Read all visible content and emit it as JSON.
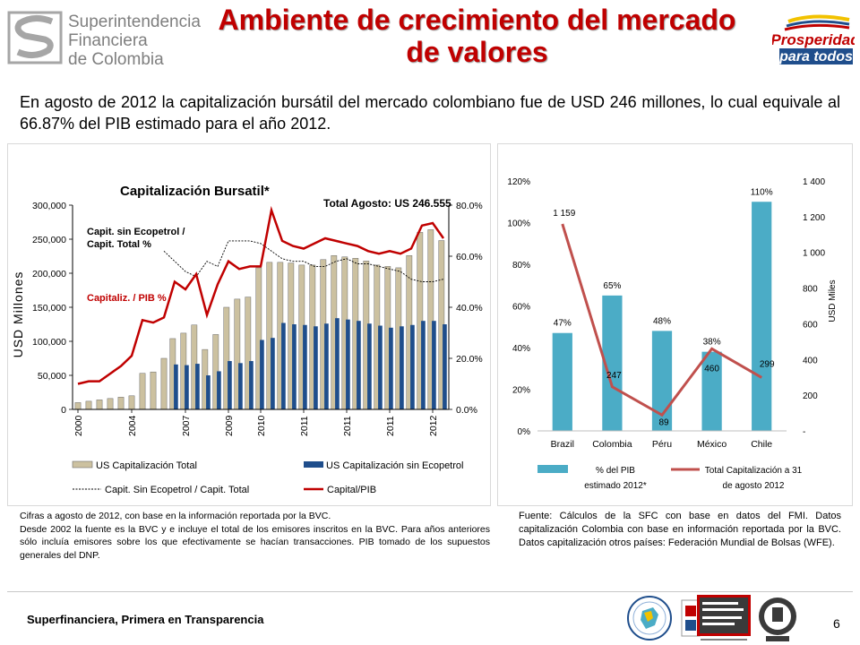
{
  "header": {
    "logo_lines": [
      "Superintendencia",
      "Financiera",
      "de Colombia"
    ],
    "title": "Ambiente de crecimiento del mercado de valores",
    "logo_right_line1": "Prosperidad",
    "logo_right_line2": "para todos"
  },
  "intro": "En agosto de 2012 la capitalización bursátil del mercado colombiano fue de USD 246 millones, lo cual equivale al 66.87% del PIB estimado para el año 2012.",
  "left_note": "Cifras a agosto de 2012, con base  en la información reportada por la BVC.\nDesde 2002 la fuente es la BVC y e incluye el total de los emisores inscritos en la BVC. Para años anteriores sólo incluía emisores sobre los que efectivamente se hacían transacciones. PIB tomado de los supuestos generales del DNP.",
  "right_note": "Fuente: Cálculos de la SFC con base en datos del FMI. Datos capitalización Colombia con base en información reportada por la BVC.  Datos capitalización otros países: Federación Mundial de Bolsas (WFE).",
  "footer": {
    "text": "Superfinanciera, Primera en Transparencia",
    "page": "6"
  },
  "colors": {
    "title_red": "#c00000",
    "tan": "#ccc1a0",
    "navy": "#1f4e8c",
    "teal": "#4bacc6",
    "rose": "#c0504d",
    "dark_red": "#c00000"
  },
  "chart_data": [
    {
      "type": "bar",
      "title": "Capitalización Bursatil*",
      "annotation_total": "Total Agosto: US 246.555",
      "annotation_ratio_ecop": "Capit. sin Ecopetrol /\nCapit. Total %",
      "annotation_ratio_pib": "Capitaliz. / PIB %",
      "ylabel": "USD Millones",
      "ylim": [
        0,
        300000
      ],
      "y2lim": [
        0,
        80
      ],
      "y_ticks": [
        "0",
        "50,000",
        "100,000",
        "150,000",
        "200,000",
        "250,000",
        "300,000"
      ],
      "y2_ticks": [
        "0.0%",
        "20.0%",
        "40.0%",
        "60.0%",
        "80.0%"
      ],
      "x_tick_labels": [
        "2000",
        "2004",
        "2007",
        "2009",
        "2010",
        "2011",
        "2011",
        "2011",
        "2012"
      ],
      "legend": [
        "US Capitalización Total",
        "US Capitalización sin Ecopetrol",
        "Capit. Sin Ecopetrol / Capit. Total",
        "Capital/PIB"
      ],
      "series": [
        {
          "name": "US Capitalización Total",
          "values": [
            10000,
            12000,
            14000,
            16000,
            18000,
            20000,
            53000,
            55000,
            75000,
            104000,
            112000,
            124000,
            88000,
            110000,
            150000,
            162000,
            165000,
            208000,
            216000,
            216000,
            215000,
            212000,
            212000,
            220000,
            226000,
            224000,
            222000,
            218000,
            212000,
            210000,
            208000,
            226000,
            260000,
            264000,
            248000
          ]
        },
        {
          "name": "US Capitalización sin Ecopetrol",
          "values": [
            null,
            null,
            null,
            null,
            null,
            null,
            null,
            null,
            null,
            66000,
            65000,
            67000,
            50000,
            56000,
            71000,
            68000,
            71000,
            102000,
            105000,
            127000,
            125000,
            124000,
            122000,
            126000,
            134000,
            132000,
            130000,
            126000,
            123000,
            120000,
            122000,
            124000,
            130000,
            130000,
            125000
          ]
        },
        {
          "name": "Capit. Sin Ecopetrol / Capit. Total",
          "values": [
            null,
            null,
            null,
            null,
            null,
            null,
            null,
            null,
            62,
            58,
            54,
            52,
            58,
            56,
            66,
            66,
            66,
            65,
            62,
            59,
            58,
            58,
            56,
            56,
            58,
            59,
            57,
            57,
            56,
            55,
            54,
            51,
            50,
            50,
            51
          ]
        },
        {
          "name": "Capital/PIB",
          "values": [
            10,
            11,
            11,
            14,
            17,
            21,
            35,
            34,
            36,
            50,
            47,
            53,
            37,
            49,
            58,
            55,
            56,
            56,
            78,
            66,
            64,
            63,
            65,
            67,
            66,
            65,
            64,
            62,
            61,
            62,
            61,
            63,
            72,
            73,
            67
          ]
        }
      ]
    },
    {
      "type": "bar",
      "categories": [
        "Brazil",
        "Colombia",
        "Péru",
        "México",
        "Chile"
      ],
      "ylim": [
        0,
        120
      ],
      "y2lim": [
        0,
        1400
      ],
      "y_ticks": [
        "0%",
        "20%",
        "40%",
        "60%",
        "80%",
        "100%",
        "120%"
      ],
      "y2_ticks": [
        "-",
        "200",
        "400",
        "600",
        "800",
        "1 000",
        "1 200",
        "1 400"
      ],
      "y2label": "USD Miles",
      "series": [
        {
          "name": "% del PIB estimado 2012*",
          "values": [
            47,
            65,
            48,
            38,
            110
          ],
          "labels": [
            "47%",
            "65%",
            "48%",
            "38%",
            "110%"
          ]
        },
        {
          "name": "Total Capitalización  a 31 de agosto 2012",
          "values": [
            1159,
            247,
            89,
            460,
            299
          ],
          "labels": [
            "1 159",
            "247",
            "89",
            "460",
            "299"
          ]
        }
      ],
      "legend": [
        "% del PIB estimado 2012*",
        "Total Capitalización  a 31 de agosto 2012"
      ]
    }
  ]
}
